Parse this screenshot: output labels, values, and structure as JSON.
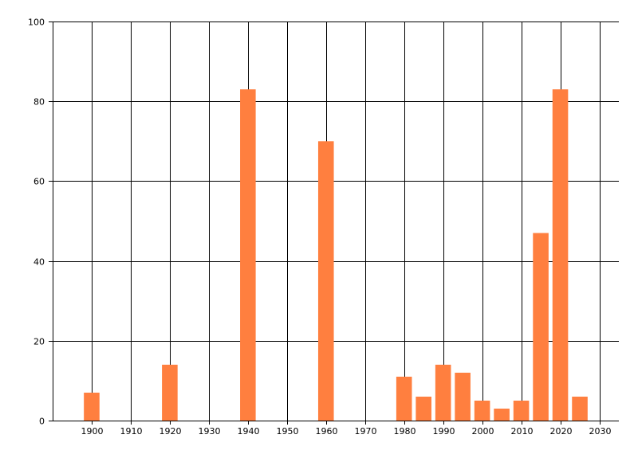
{
  "chart_data": {
    "type": "bar",
    "x": [
      1900,
      1920,
      1940,
      1960,
      1980,
      1985,
      1990,
      1995,
      2000,
      2005,
      2010,
      2015,
      2020,
      2025
    ],
    "values": [
      7,
      14,
      83,
      70,
      11,
      6,
      14,
      12,
      5,
      3,
      5,
      47,
      83,
      6
    ],
    "xlim": [
      1890,
      2035
    ],
    "ylim": [
      0,
      100
    ],
    "xticks": [
      "1900",
      "1910",
      "1920",
      "1930",
      "1940",
      "1950",
      "1960",
      "1970",
      "1980",
      "1990",
      "2000",
      "2010",
      "2020",
      "2030"
    ],
    "yticks": [
      "0",
      "20",
      "40",
      "60",
      "80",
      "100"
    ],
    "grid": true,
    "bar_color": "#ff7f3f",
    "grid_color": "#000000"
  }
}
